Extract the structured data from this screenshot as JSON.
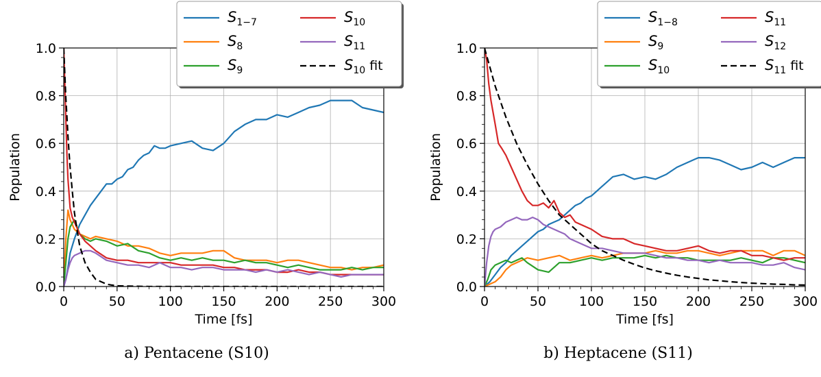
{
  "captions": {
    "a": "a) Pentacene (S10)",
    "b": "b) Heptacene (S11)"
  },
  "chart_data": [
    {
      "type": "line",
      "title": "",
      "xlabel": "Time [fs]",
      "ylabel": "Population",
      "xlim": [
        0,
        300
      ],
      "ylim": [
        0,
        1
      ],
      "x_ticks": [
        "0",
        "50",
        "100",
        "150",
        "200",
        "250",
        "300"
      ],
      "y_ticks": [
        "0.0",
        "0.2",
        "0.4",
        "0.6",
        "0.8",
        "1.0"
      ],
      "grid": true,
      "legend_position": "top-right",
      "series": [
        {
          "name": "S1−7",
          "color": "#1f77b4",
          "style": "solid",
          "x": [
            0,
            2,
            4,
            6,
            10,
            15,
            20,
            25,
            30,
            35,
            40,
            45,
            50,
            55,
            60,
            65,
            70,
            75,
            80,
            85,
            90,
            95,
            100,
            110,
            120,
            130,
            140,
            150,
            160,
            170,
            180,
            190,
            200,
            210,
            220,
            230,
            240,
            250,
            260,
            270,
            280,
            290,
            300
          ],
          "y": [
            0.0,
            0.03,
            0.08,
            0.14,
            0.2,
            0.26,
            0.3,
            0.34,
            0.37,
            0.4,
            0.43,
            0.43,
            0.45,
            0.46,
            0.49,
            0.5,
            0.53,
            0.55,
            0.56,
            0.59,
            0.58,
            0.58,
            0.59,
            0.6,
            0.61,
            0.58,
            0.57,
            0.6,
            0.65,
            0.68,
            0.7,
            0.7,
            0.72,
            0.71,
            0.73,
            0.75,
            0.76,
            0.78,
            0.78,
            0.78,
            0.75,
            0.74,
            0.73
          ]
        },
        {
          "name": "S8",
          "color": "#ff7f0e",
          "style": "solid",
          "x": [
            0,
            2,
            4,
            6,
            10,
            15,
            20,
            25,
            30,
            40,
            50,
            60,
            70,
            80,
            90,
            100,
            110,
            120,
            130,
            140,
            150,
            160,
            170,
            180,
            190,
            200,
            210,
            220,
            230,
            240,
            250,
            260,
            270,
            280,
            290,
            300
          ],
          "y": [
            0.0,
            0.2,
            0.32,
            0.28,
            0.24,
            0.22,
            0.21,
            0.2,
            0.21,
            0.2,
            0.19,
            0.17,
            0.17,
            0.16,
            0.14,
            0.13,
            0.14,
            0.14,
            0.14,
            0.15,
            0.15,
            0.12,
            0.11,
            0.11,
            0.11,
            0.1,
            0.11,
            0.11,
            0.1,
            0.09,
            0.08,
            0.08,
            0.07,
            0.08,
            0.08,
            0.09
          ]
        },
        {
          "name": "S9",
          "color": "#2ca02c",
          "style": "solid",
          "x": [
            0,
            2,
            4,
            6,
            10,
            15,
            20,
            25,
            30,
            40,
            50,
            60,
            70,
            80,
            90,
            100,
            110,
            120,
            130,
            140,
            150,
            160,
            170,
            180,
            190,
            200,
            210,
            220,
            230,
            240,
            250,
            260,
            270,
            280,
            290,
            300
          ],
          "y": [
            0.0,
            0.1,
            0.2,
            0.25,
            0.28,
            0.22,
            0.2,
            0.19,
            0.2,
            0.19,
            0.17,
            0.18,
            0.15,
            0.14,
            0.12,
            0.11,
            0.12,
            0.11,
            0.12,
            0.11,
            0.11,
            0.1,
            0.11,
            0.1,
            0.1,
            0.09,
            0.08,
            0.09,
            0.08,
            0.07,
            0.07,
            0.07,
            0.08,
            0.07,
            0.08,
            0.08
          ]
        },
        {
          "name": "S10",
          "color": "#d62728",
          "style": "solid",
          "x": [
            0,
            1,
            2,
            3,
            4,
            6,
            8,
            10,
            12,
            15,
            20,
            25,
            30,
            40,
            50,
            60,
            70,
            80,
            90,
            100,
            110,
            120,
            130,
            140,
            150,
            160,
            170,
            180,
            190,
            200,
            210,
            220,
            230,
            240,
            250,
            260,
            270,
            280,
            290,
            300
          ],
          "y": [
            1.0,
            0.85,
            0.7,
            0.55,
            0.45,
            0.33,
            0.29,
            0.27,
            0.25,
            0.22,
            0.19,
            0.17,
            0.15,
            0.12,
            0.11,
            0.11,
            0.1,
            0.1,
            0.1,
            0.1,
            0.09,
            0.09,
            0.09,
            0.09,
            0.08,
            0.08,
            0.07,
            0.07,
            0.07,
            0.06,
            0.06,
            0.07,
            0.06,
            0.06,
            0.05,
            0.05,
            0.05,
            0.05,
            0.05,
            0.05
          ]
        },
        {
          "name": "S11",
          "color": "#9467bd",
          "style": "solid",
          "x": [
            0,
            2,
            4,
            6,
            8,
            10,
            15,
            20,
            25,
            30,
            40,
            50,
            60,
            70,
            80,
            90,
            100,
            110,
            120,
            130,
            140,
            150,
            160,
            170,
            180,
            190,
            200,
            210,
            220,
            230,
            240,
            250,
            260,
            270,
            280,
            290,
            300
          ],
          "y": [
            0.0,
            0.03,
            0.07,
            0.1,
            0.12,
            0.13,
            0.14,
            0.15,
            0.15,
            0.14,
            0.11,
            0.1,
            0.09,
            0.09,
            0.08,
            0.1,
            0.08,
            0.08,
            0.07,
            0.08,
            0.08,
            0.07,
            0.07,
            0.07,
            0.06,
            0.07,
            0.06,
            0.07,
            0.06,
            0.05,
            0.06,
            0.05,
            0.04,
            0.05,
            0.05,
            0.05,
            0.05
          ]
        },
        {
          "name": "S10 fit",
          "color": "#000000",
          "style": "dashed",
          "x": [
            0,
            1,
            2,
            3,
            4,
            5,
            6,
            8,
            10,
            12,
            15,
            20,
            25,
            30,
            35,
            40,
            45,
            50,
            60,
            80,
            100,
            150,
            200,
            250,
            300
          ],
          "y": [
            1.0,
            0.89,
            0.79,
            0.71,
            0.63,
            0.56,
            0.5,
            0.4,
            0.31,
            0.25,
            0.17,
            0.1,
            0.06,
            0.03,
            0.02,
            0.01,
            0.006,
            0.003,
            0.002,
            0.0,
            0.0,
            0.0,
            0.0,
            0.0,
            0.0
          ]
        }
      ]
    },
    {
      "type": "line",
      "title": "",
      "xlabel": "Time [fs]",
      "ylabel": "Population",
      "xlim": [
        0,
        300
      ],
      "ylim": [
        0,
        1
      ],
      "x_ticks": [
        "0",
        "50",
        "100",
        "150",
        "200",
        "250",
        "300"
      ],
      "y_ticks": [
        "0.0",
        "0.2",
        "0.4",
        "0.6",
        "0.8",
        "1.0"
      ],
      "grid": true,
      "legend_position": "top-right",
      "series": [
        {
          "name": "S1−8",
          "color": "#1f77b4",
          "style": "solid",
          "x": [
            0,
            5,
            10,
            15,
            20,
            25,
            30,
            35,
            40,
            45,
            50,
            55,
            60,
            65,
            70,
            75,
            80,
            85,
            90,
            95,
            100,
            105,
            110,
            115,
            120,
            130,
            140,
            150,
            160,
            170,
            180,
            190,
            200,
            210,
            220,
            230,
            240,
            250,
            260,
            270,
            280,
            290,
            300
          ],
          "y": [
            0.0,
            0.02,
            0.05,
            0.08,
            0.1,
            0.13,
            0.15,
            0.17,
            0.19,
            0.21,
            0.23,
            0.24,
            0.26,
            0.27,
            0.28,
            0.3,
            0.32,
            0.34,
            0.35,
            0.37,
            0.38,
            0.4,
            0.42,
            0.44,
            0.46,
            0.47,
            0.45,
            0.46,
            0.45,
            0.47,
            0.5,
            0.52,
            0.54,
            0.54,
            0.53,
            0.51,
            0.49,
            0.5,
            0.52,
            0.5,
            0.52,
            0.54,
            0.54
          ]
        },
        {
          "name": "S9",
          "color": "#ff7f0e",
          "style": "solid",
          "x": [
            0,
            5,
            10,
            15,
            20,
            25,
            30,
            35,
            40,
            50,
            60,
            70,
            80,
            90,
            100,
            110,
            120,
            130,
            140,
            150,
            160,
            170,
            180,
            190,
            200,
            210,
            220,
            230,
            240,
            250,
            260,
            270,
            280,
            290,
            300
          ],
          "y": [
            0.0,
            0.01,
            0.02,
            0.04,
            0.07,
            0.09,
            0.1,
            0.11,
            0.12,
            0.11,
            0.12,
            0.13,
            0.11,
            0.12,
            0.13,
            0.12,
            0.13,
            0.14,
            0.14,
            0.14,
            0.15,
            0.14,
            0.14,
            0.15,
            0.15,
            0.14,
            0.13,
            0.14,
            0.15,
            0.15,
            0.15,
            0.13,
            0.15,
            0.15,
            0.13
          ]
        },
        {
          "name": "S10",
          "color": "#2ca02c",
          "style": "solid",
          "x": [
            0,
            3,
            6,
            10,
            15,
            20,
            25,
            30,
            35,
            40,
            50,
            60,
            70,
            80,
            90,
            100,
            110,
            120,
            130,
            140,
            150,
            160,
            170,
            180,
            190,
            200,
            210,
            220,
            230,
            240,
            250,
            260,
            270,
            280,
            290,
            300
          ],
          "y": [
            0.0,
            0.03,
            0.07,
            0.09,
            0.1,
            0.11,
            0.1,
            0.11,
            0.12,
            0.1,
            0.07,
            0.06,
            0.1,
            0.1,
            0.11,
            0.12,
            0.11,
            0.12,
            0.12,
            0.12,
            0.13,
            0.12,
            0.13,
            0.12,
            0.12,
            0.11,
            0.11,
            0.11,
            0.11,
            0.12,
            0.11,
            0.1,
            0.12,
            0.12,
            0.11,
            0.1
          ]
        },
        {
          "name": "S11",
          "color": "#d62728",
          "style": "solid",
          "x": [
            0,
            2,
            4,
            6,
            8,
            10,
            13,
            16,
            20,
            25,
            30,
            35,
            40,
            45,
            50,
            55,
            60,
            65,
            70,
            75,
            80,
            85,
            90,
            100,
            110,
            120,
            130,
            140,
            150,
            160,
            170,
            180,
            190,
            200,
            210,
            220,
            230,
            240,
            250,
            260,
            270,
            280,
            290,
            300
          ],
          "y": [
            1.0,
            0.95,
            0.85,
            0.78,
            0.73,
            0.68,
            0.6,
            0.58,
            0.55,
            0.5,
            0.45,
            0.4,
            0.36,
            0.34,
            0.34,
            0.35,
            0.33,
            0.36,
            0.31,
            0.29,
            0.3,
            0.27,
            0.26,
            0.24,
            0.21,
            0.2,
            0.2,
            0.18,
            0.17,
            0.16,
            0.15,
            0.15,
            0.16,
            0.17,
            0.15,
            0.14,
            0.15,
            0.15,
            0.13,
            0.13,
            0.12,
            0.11,
            0.12,
            0.12
          ]
        },
        {
          "name": "S12",
          "color": "#9467bd",
          "style": "solid",
          "x": [
            0,
            2,
            4,
            6,
            8,
            10,
            15,
            20,
            25,
            30,
            35,
            40,
            45,
            50,
            55,
            60,
            65,
            70,
            75,
            80,
            90,
            100,
            110,
            120,
            130,
            140,
            150,
            160,
            170,
            180,
            190,
            200,
            210,
            220,
            230,
            240,
            250,
            260,
            270,
            280,
            290,
            300
          ],
          "y": [
            0.0,
            0.1,
            0.17,
            0.21,
            0.23,
            0.24,
            0.25,
            0.27,
            0.28,
            0.29,
            0.28,
            0.28,
            0.29,
            0.28,
            0.26,
            0.25,
            0.24,
            0.23,
            0.22,
            0.2,
            0.18,
            0.16,
            0.16,
            0.15,
            0.14,
            0.14,
            0.14,
            0.13,
            0.12,
            0.12,
            0.11,
            0.11,
            0.1,
            0.11,
            0.1,
            0.1,
            0.1,
            0.09,
            0.09,
            0.1,
            0.08,
            0.07
          ]
        },
        {
          "name": "S11 fit",
          "color": "#000000",
          "style": "dashed",
          "x": [
            0,
            10,
            20,
            30,
            40,
            50,
            60,
            70,
            80,
            90,
            100,
            110,
            120,
            130,
            140,
            150,
            160,
            170,
            180,
            190,
            200,
            210,
            220,
            230,
            240,
            250,
            260,
            270,
            280,
            290,
            300
          ],
          "y": [
            1.0,
            0.84,
            0.71,
            0.6,
            0.51,
            0.43,
            0.36,
            0.3,
            0.26,
            0.22,
            0.18,
            0.15,
            0.13,
            0.11,
            0.093,
            0.078,
            0.066,
            0.056,
            0.047,
            0.04,
            0.034,
            0.028,
            0.024,
            0.02,
            0.017,
            0.014,
            0.012,
            0.01,
            0.009,
            0.007,
            0.006
          ]
        }
      ]
    }
  ]
}
